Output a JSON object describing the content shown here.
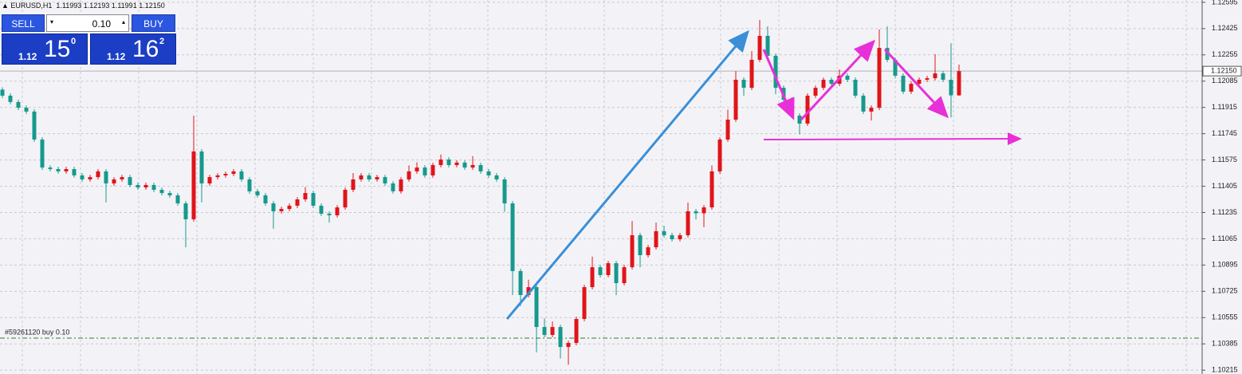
{
  "chart_data": {
    "type": "candlestick",
    "header": "EURUSD,H1  1.11993 1.12193 1.11991 1.12150",
    "trade_panel": {
      "sell_label": "SELL",
      "buy_label": "BUY",
      "lot": "0.10",
      "sell_price": {
        "big": "1.12",
        "pips": "15",
        "frac": "0"
      },
      "buy_price": {
        "big": "1.12",
        "pips": "16",
        "frac": "2"
      }
    },
    "up_color": "#e0141a",
    "down_color": "#16998c",
    "ylim": [
      1.1019,
      1.1261
    ],
    "yticks": [
      1.12595,
      1.12425,
      1.12255,
      1.12085,
      1.11915,
      1.11745,
      1.11575,
      1.11405,
      1.11235,
      1.11065,
      1.10895,
      1.10725,
      1.10555,
      1.10385,
      1.10215
    ],
    "grid": true,
    "bid": {
      "value": 1.1215,
      "label": "1.12150"
    },
    "order_price": 1.10422,
    "order_label": "#59261120 buy 0.10",
    "open": [
      1.1203,
      1.11991,
      1.1195,
      1.11913,
      1.11888,
      1.11707,
      1.11526,
      1.11516,
      1.11501,
      1.11516,
      1.11475,
      1.11449,
      1.11464,
      1.11501,
      1.11423,
      1.11449,
      1.11464,
      1.11413,
      1.11397,
      1.11413,
      1.11382,
      1.11361,
      1.11346,
      1.11294,
      1.11191,
      1.1163,
      1.11423,
      1.11464,
      1.11475,
      1.11485,
      1.11501,
      1.11449,
      1.11372,
      1.11346,
      1.11294,
      1.11243,
      1.11258,
      1.11279,
      1.1132,
      1.11361,
      1.11279,
      1.11227,
      1.11217,
      1.11268,
      1.11382,
      1.11449,
      1.11475,
      1.11449,
      1.11464,
      1.11423,
      1.11372,
      1.11449,
      1.11501,
      1.11526,
      1.11475,
      1.11542,
      1.11578,
      1.11542,
      1.11558,
      1.11526,
      1.11542,
      1.11501,
      1.11475,
      1.11449,
      1.11294,
      1.10856,
      1.10701,
      1.10752,
      1.10494,
      1.10443,
      1.10494,
      1.10365,
      1.10391,
      1.10546,
      1.10752,
      1.10881,
      1.1083,
      1.10907,
      1.10778,
      1.10881,
      1.11088,
      1.10959,
      1.1101,
      1.11114,
      1.11088,
      1.11062,
      1.11088,
      1.11243,
      1.1123,
      1.11268,
      1.11501,
      1.11707,
      1.11836,
      1.12094,
      1.12042,
      1.12223,
      1.12378,
      1.12249,
      1.12042,
      1.11965,
      1.11862,
      1.1181,
      1.11991,
      1.12042,
      1.12094,
      1.12068,
      1.1212,
      1.12094,
      1.11991,
      1.11888,
      1.11913,
      1.123,
      1.12223,
      1.1212,
      1.12017,
      1.12068,
      1.12094,
      1.12104,
      1.12135,
      1.12094,
      1.11993
    ],
    "high": [
      1.12045,
      1.12006,
      1.11965,
      1.11928,
      1.11903,
      1.11722,
      1.11541,
      1.11531,
      1.11531,
      1.11531,
      1.1149,
      1.11479,
      1.11516,
      1.11516,
      1.11464,
      1.11479,
      1.11479,
      1.11428,
      1.11428,
      1.11428,
      1.11397,
      1.11376,
      1.11361,
      1.11309,
      1.11862,
      1.11645,
      1.11479,
      1.1149,
      1.115,
      1.11516,
      1.11516,
      1.11464,
      1.11387,
      1.11361,
      1.11309,
      1.11273,
      1.11294,
      1.11335,
      1.114,
      1.11376,
      1.11294,
      1.11242,
      1.11283,
      1.11397,
      1.1149,
      1.1149,
      1.1149,
      1.11479,
      1.11479,
      1.11438,
      1.11464,
      1.1154,
      1.1156,
      1.11541,
      1.11557,
      1.1161,
      1.11593,
      1.11573,
      1.11573,
      1.116,
      1.11557,
      1.11516,
      1.1149,
      1.11464,
      1.11309,
      1.10871,
      1.108,
      1.10767,
      1.1055,
      1.1053,
      1.10509,
      1.10406,
      1.10561,
      1.10767,
      1.1095,
      1.10896,
      1.10922,
      1.10922,
      1.10896,
      1.1118,
      1.11103,
      1.11025,
      1.1117,
      1.1115,
      1.11103,
      1.11103,
      1.113,
      1.11258,
      1.11283,
      1.1154,
      1.11722,
      1.119,
      1.1215,
      1.12109,
      1.1228,
      1.12481,
      1.1244,
      1.12264,
      1.12057,
      1.1198,
      1.11877,
      1.12006,
      1.12057,
      1.12109,
      1.12109,
      1.1216,
      1.12135,
      1.12109,
      1.12006,
      1.11928,
      1.1242,
      1.1244,
      1.12238,
      1.12135,
      1.12083,
      1.12109,
      1.12119,
      1.1226,
      1.1215,
      1.1233,
      1.12193
    ],
    "low": [
      1.11976,
      1.11935,
      1.11898,
      1.11873,
      1.11692,
      1.11511,
      1.11501,
      1.11486,
      1.11486,
      1.1146,
      1.11434,
      1.11434,
      1.11449,
      1.113,
      1.11408,
      1.11434,
      1.11398,
      1.11382,
      1.11382,
      1.11367,
      1.11346,
      1.11331,
      1.11279,
      1.1101,
      1.11176,
      1.113,
      1.11408,
      1.11449,
      1.1146,
      1.1147,
      1.11434,
      1.11357,
      1.11331,
      1.11279,
      1.1113,
      1.11228,
      1.11243,
      1.11264,
      1.11305,
      1.11264,
      1.11212,
      1.1117,
      1.11202,
      1.11253,
      1.11367,
      1.11434,
      1.11434,
      1.11434,
      1.11408,
      1.11357,
      1.11357,
      1.11434,
      1.11486,
      1.1146,
      1.1146,
      1.11527,
      1.11527,
      1.11527,
      1.11511,
      1.11511,
      1.11486,
      1.1146,
      1.11434,
      1.1124,
      1.107,
      1.1063,
      1.10686,
      1.1033,
      1.10428,
      1.10428,
      1.1029,
      1.1025,
      1.10376,
      1.10531,
      1.10737,
      1.10815,
      1.10815,
      1.107,
      1.10763,
      1.10866,
      1.1088,
      1.10944,
      1.10995,
      1.11073,
      1.11047,
      1.11047,
      1.11073,
      1.1119,
      1.1114,
      1.11253,
      1.11486,
      1.11692,
      1.11821,
      1.1199,
      1.12027,
      1.12208,
      1.12234,
      1.12,
      1.119,
      1.11847,
      1.1174,
      1.11795,
      1.11976,
      1.12027,
      1.12053,
      1.12053,
      1.12079,
      1.11976,
      1.11873,
      1.1183,
      1.11898,
      1.12208,
      1.12105,
      1.12002,
      1.12002,
      1.12053,
      1.12079,
      1.12089,
      1.12079,
      1.1185,
      1.11991
    ],
    "close": [
      1.11991,
      1.1195,
      1.11913,
      1.11888,
      1.11707,
      1.11526,
      1.11516,
      1.11501,
      1.11516,
      1.11475,
      1.11449,
      1.11464,
      1.11501,
      1.11423,
      1.11449,
      1.11464,
      1.11413,
      1.11397,
      1.11413,
      1.11382,
      1.11361,
      1.11346,
      1.11294,
      1.11191,
      1.1163,
      1.11423,
      1.11464,
      1.11475,
      1.11485,
      1.11501,
      1.11449,
      1.11372,
      1.11346,
      1.11294,
      1.11243,
      1.11258,
      1.11279,
      1.1132,
      1.11361,
      1.11279,
      1.11227,
      1.11217,
      1.11268,
      1.11382,
      1.11449,
      1.11475,
      1.11449,
      1.11464,
      1.11423,
      1.11372,
      1.11449,
      1.11501,
      1.11526,
      1.11475,
      1.11542,
      1.11578,
      1.11542,
      1.11558,
      1.11526,
      1.11542,
      1.11501,
      1.11475,
      1.11449,
      1.11294,
      1.10856,
      1.10701,
      1.10752,
      1.10494,
      1.10443,
      1.10494,
      1.10365,
      1.10391,
      1.10546,
      1.10752,
      1.10881,
      1.1083,
      1.10907,
      1.10778,
      1.10881,
      1.11088,
      1.10959,
      1.1101,
      1.11114,
      1.11088,
      1.11062,
      1.11088,
      1.11243,
      1.1123,
      1.11268,
      1.11501,
      1.11707,
      1.11836,
      1.12094,
      1.12042,
      1.12223,
      1.12378,
      1.12249,
      1.12042,
      1.11965,
      1.11862,
      1.1181,
      1.11991,
      1.12042,
      1.12094,
      1.12068,
      1.1212,
      1.12094,
      1.11991,
      1.11888,
      1.11913,
      1.123,
      1.12223,
      1.1212,
      1.12017,
      1.12068,
      1.12094,
      1.12104,
      1.12135,
      1.12094,
      1.11993,
      1.1215
    ]
  }
}
